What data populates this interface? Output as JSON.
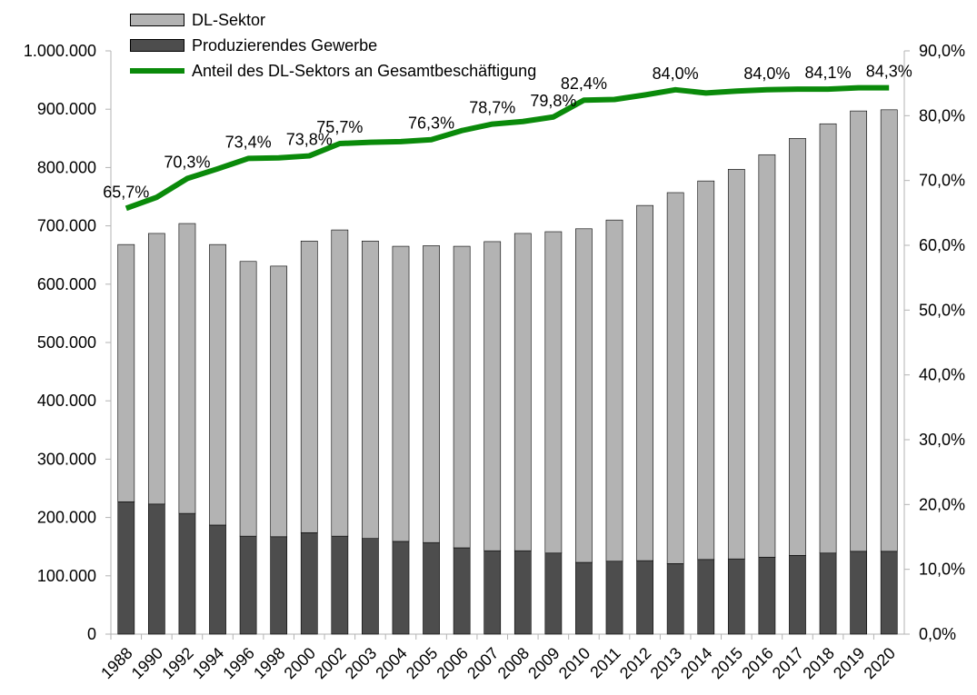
{
  "chart_data": {
    "type": "bar-line",
    "stacked": true,
    "categories": [
      "1988",
      "1990",
      "1992",
      "1994",
      "1996",
      "1998",
      "2000",
      "2002",
      "2003",
      "2004",
      "2005",
      "2006",
      "2007",
      "2008",
      "2009",
      "2010",
      "2011",
      "2012",
      "2013",
      "2014",
      "2015",
      "2016",
      "2017",
      "2018",
      "2019",
      "2020"
    ],
    "series": [
      {
        "name": "Produzierendes Gewerbe",
        "type": "bar",
        "color": "#4d4d4d",
        "values": [
          227000,
          223000,
          207000,
          187000,
          168000,
          167000,
          174000,
          168000,
          164000,
          159000,
          157000,
          148000,
          143000,
          143000,
          139000,
          123000,
          125000,
          126000,
          121000,
          128000,
          129000,
          132000,
          135000,
          139000,
          142000,
          142000
        ]
      },
      {
        "name": "DL-Sektor",
        "type": "bar",
        "color": "#b3b3b3",
        "values": [
          441000,
          464000,
          497000,
          481000,
          471000,
          464000,
          500000,
          525000,
          510000,
          506000,
          509000,
          517000,
          530000,
          544000,
          551000,
          572000,
          585000,
          609000,
          636000,
          649000,
          668000,
          690000,
          715000,
          736000,
          755000,
          757000
        ]
      },
      {
        "name": "Anteil des DL-Sektors an Gesamtbeschäf­tigung",
        "type": "line",
        "axis": "y2",
        "color": "#0a8a0a",
        "values": [
          65.7,
          67.4,
          70.3,
          71.8,
          73.4,
          73.5,
          73.8,
          75.7,
          75.9,
          76.0,
          76.3,
          77.7,
          78.7,
          79.1,
          79.8,
          82.4,
          82.5,
          83.2,
          84.0,
          83.5,
          83.8,
          84.0,
          84.1,
          84.1,
          84.3,
          84.3
        ],
        "value_labels": [
          "65,7%",
          null,
          "70,3%",
          null,
          "73,4%",
          null,
          "73,8%",
          "75,7%",
          null,
          null,
          "76,3%",
          null,
          "78,7%",
          null,
          "79,8%",
          "82,4%",
          null,
          null,
          "84,0%",
          null,
          null,
          "84,0%",
          null,
          "84,1%",
          null,
          "84,3%"
        ]
      }
    ],
    "legend_order": [
      1,
      0,
      2
    ],
    "ylim": [
      0,
      1000000
    ],
    "yticks": [
      0,
      {
        "value": 100000,
        "label": "100.000"
      },
      {
        "value": 200000,
        "label": "200.000"
      },
      {
        "value": 300000,
        "label": "300.000"
      },
      {
        "value": 400000,
        "label": "400.000"
      },
      {
        "value": 500000,
        "label": "500.000"
      },
      {
        "value": 600000,
        "label": "600.000"
      },
      {
        "value": 700000,
        "label": "700.000"
      },
      {
        "value": 800000,
        "label": "800.000"
      },
      {
        "value": 900000,
        "label": "900.000"
      },
      {
        "value": 1000000,
        "label": "1.000.000"
      }
    ],
    "y2lim": [
      0,
      90
    ],
    "y2ticks": [
      {
        "value": 0,
        "label": "0,0%"
      },
      {
        "value": 10,
        "label": "10,0%"
      },
      {
        "value": 20,
        "label": "20,0%"
      },
      {
        "value": 30,
        "label": "30,0%"
      },
      {
        "value": 40,
        "label": "40,0%"
      },
      {
        "value": 50,
        "label": "50,0%"
      },
      {
        "value": 60,
        "label": "60,0%"
      },
      {
        "value": 70,
        "label": "70,0%"
      },
      {
        "value": 80,
        "label": "80,0%"
      },
      {
        "value": 90,
        "label": "90,0%"
      }
    ],
    "grid": false
  }
}
